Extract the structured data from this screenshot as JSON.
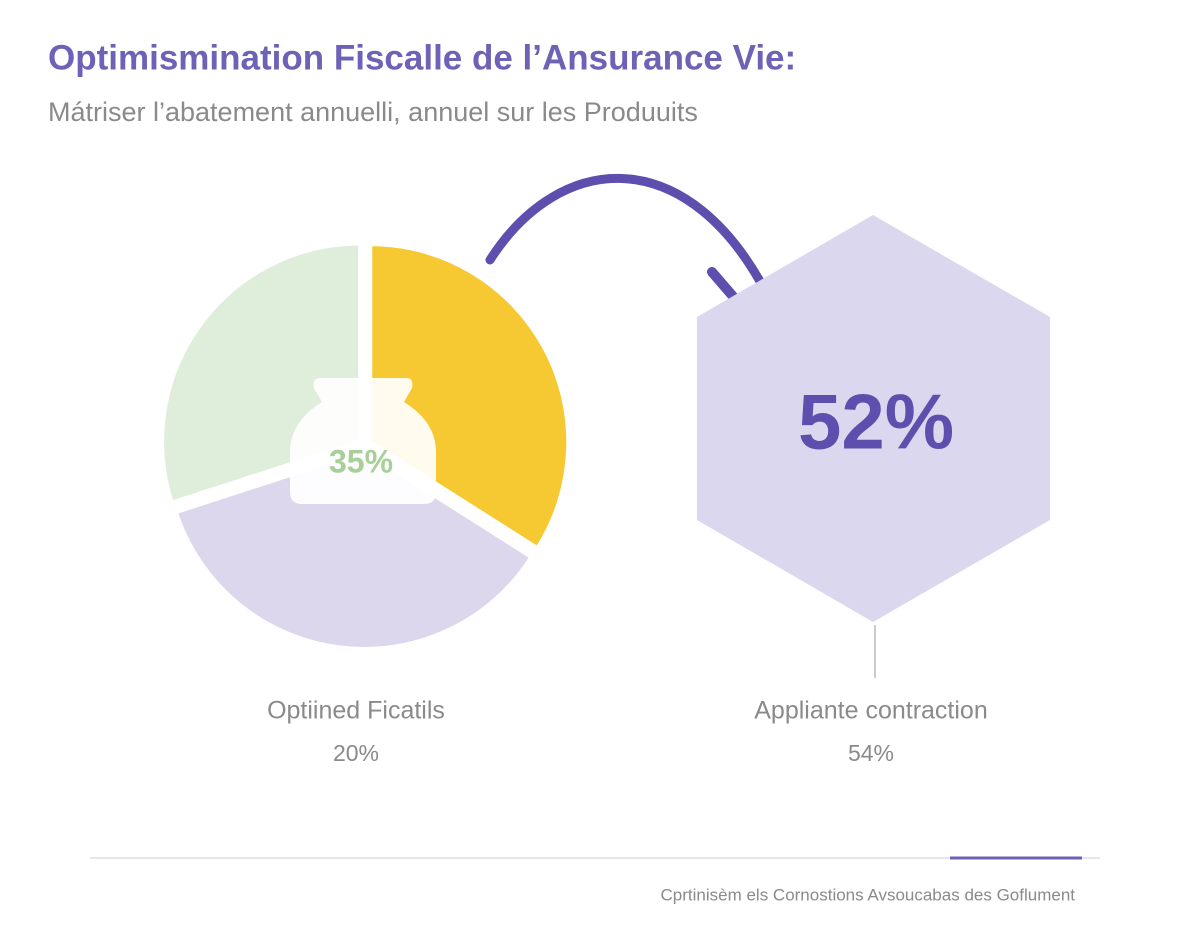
{
  "header": {
    "title": "Optimismination Fiscalle de l’Ansurance Vie:",
    "subtitle": "Mátriser l’abatement annuelli, annuel sur les Produuits"
  },
  "pie": {
    "segments": [
      {
        "color": "#f6c932",
        "value": 34
      },
      {
        "color": "#dcd7ed",
        "value": 36
      },
      {
        "color": "#deeedb",
        "value": 30
      }
    ],
    "center_label": "35%"
  },
  "hexagon": {
    "label": "52%",
    "color": "#dbd7ee"
  },
  "captions": [
    {
      "title": "Optiined Ficatils",
      "value": "20%"
    },
    {
      "title": "Appliante contraction",
      "value": "54%"
    }
  ],
  "footer": "Cprtinisèm els Cornostions Avsoucabas des Goflument"
}
